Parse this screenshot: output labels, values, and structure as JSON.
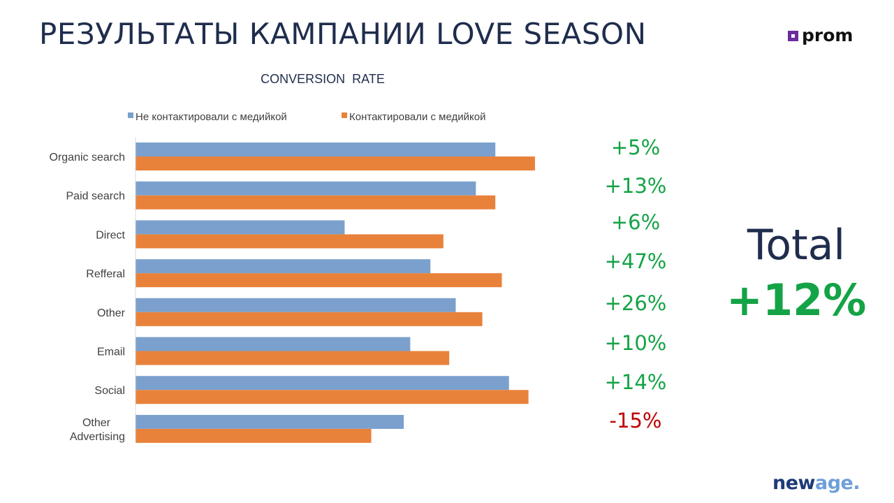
{
  "slide": {
    "title": "РЕЗУЛЬТАТЫ КАМПАНИИ LOVE SEASON",
    "total_label": "Total",
    "total_value": "+12%"
  },
  "logos": {
    "prom_text": "prom",
    "newage_new": "new",
    "newage_age": "age",
    "newage_dot": "."
  },
  "colors": {
    "series_1": "#7ba0cd",
    "series_2": "#e8823b",
    "positive": "#14a346",
    "negative": "#c00000",
    "title": "#1f2d4d"
  },
  "chart_data": {
    "type": "bar",
    "orientation": "horizontal",
    "title": "CONVERSION  RATE",
    "legend_position": "top",
    "grid": false,
    "value_axis_visible": false,
    "categories": [
      "Organic search",
      "Paid search",
      "Direct",
      "Refferal",
      "Other",
      "Email",
      "Social",
      "Other Advertising"
    ],
    "series": [
      {
        "name": "Не контактировали с медийкой",
        "values": [
          55.4,
          52.4,
          32.2,
          45.4,
          49.3,
          42.3,
          57.5,
          41.3
        ]
      },
      {
        "name": "Контактировали с медийкой",
        "values": [
          61.5,
          55.4,
          47.4,
          56.4,
          53.4,
          48.3,
          60.5,
          36.3
        ]
      }
    ],
    "xlim": [
      0,
      100
    ],
    "annotations": [
      "+5%",
      "+13%",
      "+6%",
      "+47%",
      "+26%",
      "+10%",
      "+14%",
      "-15%"
    ]
  }
}
